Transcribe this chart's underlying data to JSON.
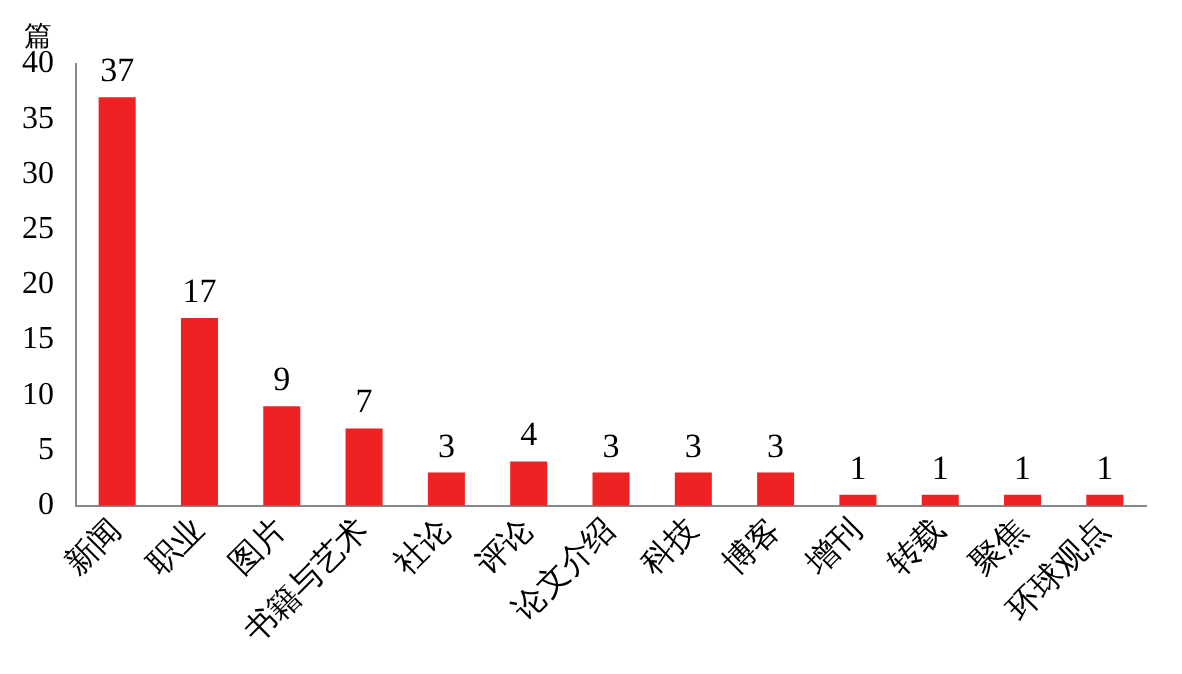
{
  "chart_data": {
    "type": "bar",
    "ylabel": "篇",
    "categories": [
      "新闻",
      "职业",
      "图片",
      "书籍与艺术",
      "社论",
      "评论",
      "论文介绍",
      "科技",
      "博客",
      "增刊",
      "转载",
      "聚焦",
      "环球观点"
    ],
    "values": [
      37,
      17,
      9,
      7,
      3,
      4,
      3,
      3,
      3,
      1,
      1,
      1,
      1
    ],
    "color": "#ee2222",
    "ylim": [
      0,
      40
    ],
    "yticks": [
      0,
      5,
      10,
      15,
      20,
      25,
      30,
      35,
      40
    ],
    "grid": false,
    "legend": false,
    "data_labels": true
  }
}
